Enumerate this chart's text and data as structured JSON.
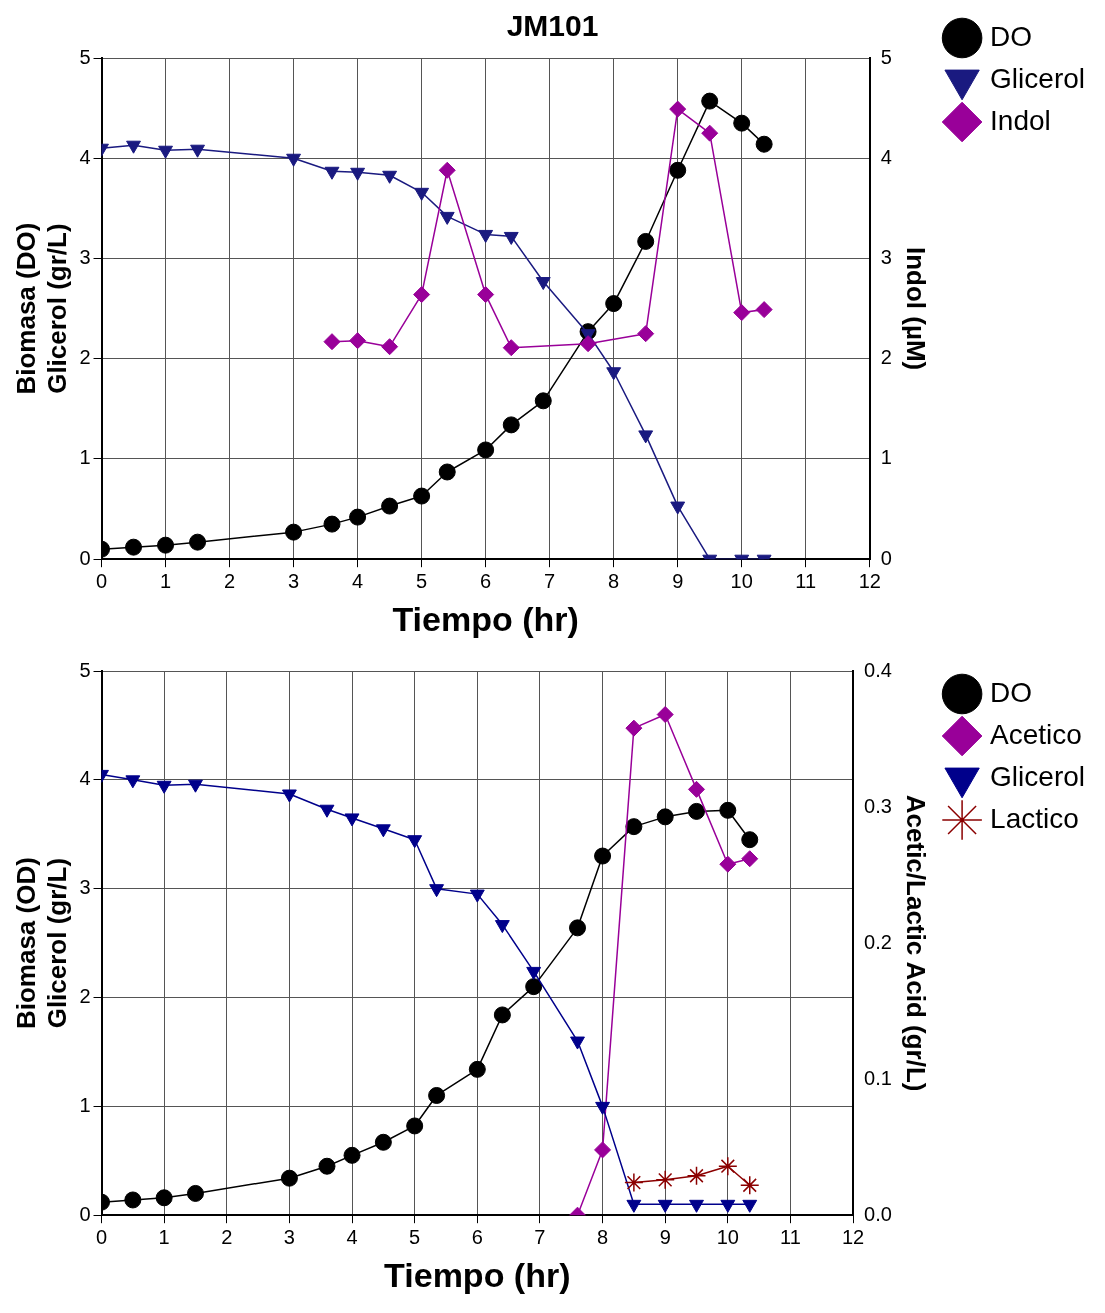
{
  "chart_data": [
    {
      "type": "line",
      "title": "JM101",
      "xlabel": "Tiempo (hr)",
      "ylabel": "Biomasa (DO)\nGlicerol (gr/L)",
      "y2label": "Indol (µM)",
      "xlim": [
        0,
        12
      ],
      "xticks": [
        0,
        1,
        2,
        3,
        4,
        5,
        6,
        7,
        8,
        9,
        10,
        11,
        12
      ],
      "ylim": [
        0,
        5
      ],
      "yticks": [
        0,
        1,
        2,
        3,
        4,
        5
      ],
      "y2lim": [
        0,
        5
      ],
      "y2ticks": [
        0,
        1,
        2,
        3,
        4,
        5
      ],
      "grid": true,
      "legend": "top right",
      "series": [
        {
          "name": "DO",
          "color": "#000000",
          "marker": "circle",
          "x": [
            0,
            0.5,
            1,
            1.5,
            3,
            3.6,
            4,
            4.5,
            5,
            5.4,
            6,
            6.4,
            6.9,
            7.6,
            8,
            8.5,
            9,
            9.5,
            10,
            10.35
          ],
          "values": [
            0.1,
            0.12,
            0.14,
            0.17,
            0.27,
            0.35,
            0.42,
            0.53,
            0.63,
            0.87,
            1.09,
            1.34,
            1.58,
            2.27,
            2.55,
            3.17,
            3.88,
            4.57,
            4.35,
            4.14
          ]
        },
        {
          "name": "Glicerol",
          "color": "#1a1a80",
          "marker": "triangle",
          "x": [
            0,
            0.5,
            1,
            1.5,
            3,
            3.6,
            4,
            4.5,
            5,
            5.4,
            6,
            6.4,
            6.9,
            7.6,
            8,
            8.5,
            9,
            9.5,
            10,
            10.35
          ],
          "values": [
            4.1,
            4.13,
            4.08,
            4.09,
            4.0,
            3.87,
            3.86,
            3.83,
            3.66,
            3.42,
            3.24,
            3.22,
            2.77,
            2.25,
            1.87,
            1.24,
            0.53,
            0,
            0,
            0
          ]
        },
        {
          "name": "Indol",
          "color": "#990099",
          "marker": "diamond",
          "axis": "y2",
          "x": [
            3.6,
            4,
            4.5,
            5,
            5.4,
            6,
            6.4,
            7.6,
            8.5,
            9,
            9.5,
            10,
            10.35
          ],
          "values": [
            2.17,
            2.18,
            2.12,
            2.64,
            3.88,
            2.64,
            2.11,
            2.15,
            2.25,
            4.49,
            4.25,
            2.46,
            2.49
          ]
        }
      ]
    },
    {
      "type": "line",
      "xlabel": "Tiempo (hr)",
      "ylabel": "Biomasa (OD)\nGlicerol (gr/L)",
      "y2label": "Acetic/Lactic Acid (gr/L)",
      "xlim": [
        0,
        12
      ],
      "xticks": [
        0,
        1,
        2,
        3,
        4,
        5,
        6,
        7,
        8,
        9,
        10,
        11,
        12
      ],
      "ylim": [
        0,
        5
      ],
      "yticks": [
        0,
        1,
        2,
        3,
        4,
        5
      ],
      "y2lim": [
        0,
        0.4
      ],
      "y2ticks": [
        {
          "value": 0,
          "label": "0.0"
        },
        0.1,
        0.2,
        0.3,
        0.4
      ],
      "grid": true,
      "legend": "top right",
      "series": [
        {
          "name": "DO",
          "color": "#000000",
          "marker": "circle",
          "x": [
            0,
            0.5,
            1,
            1.5,
            3,
            3.6,
            4,
            4.5,
            5,
            5.35,
            6,
            6.4,
            6.9,
            7.6,
            8,
            8.5,
            9,
            9.5,
            10,
            10.35
          ],
          "values": [
            0.12,
            0.14,
            0.16,
            0.2,
            0.34,
            0.45,
            0.55,
            0.67,
            0.82,
            1.1,
            1.34,
            1.84,
            2.1,
            2.64,
            3.3,
            3.57,
            3.66,
            3.71,
            3.72,
            3.45
          ]
        },
        {
          "name": "Acetico",
          "color": "#990099",
          "marker": "diamond",
          "axis": "y2",
          "x": [
            7.6,
            8,
            8.5,
            9,
            9.5,
            10,
            10.35
          ],
          "values": [
            0.0,
            0.048,
            0.358,
            0.368,
            0.313,
            0.258,
            0.262
          ]
        },
        {
          "name": "Glicerol",
          "color": "#00008b",
          "marker": "triangle",
          "x": [
            0,
            0.5,
            1,
            1.5,
            3,
            3.6,
            4,
            4.5,
            5,
            5.35,
            6,
            6.4,
            6.9,
            7.6,
            8,
            8.5,
            9,
            9.5,
            10,
            10.35
          ],
          "values": [
            4.05,
            4.0,
            3.95,
            3.96,
            3.87,
            3.73,
            3.65,
            3.55,
            3.45,
            3.0,
            2.95,
            2.67,
            2.24,
            1.6,
            1.0,
            0.1,
            0.1,
            0.1,
            0.1,
            0.1
          ]
        },
        {
          "name": "Lactico",
          "color": "#8b0000",
          "marker": "cross",
          "axis": "y2",
          "x": [
            8.5,
            9,
            9.5,
            10,
            10.35
          ],
          "values": [
            0.024,
            0.026,
            0.029,
            0.036,
            0.022
          ]
        }
      ]
    }
  ]
}
